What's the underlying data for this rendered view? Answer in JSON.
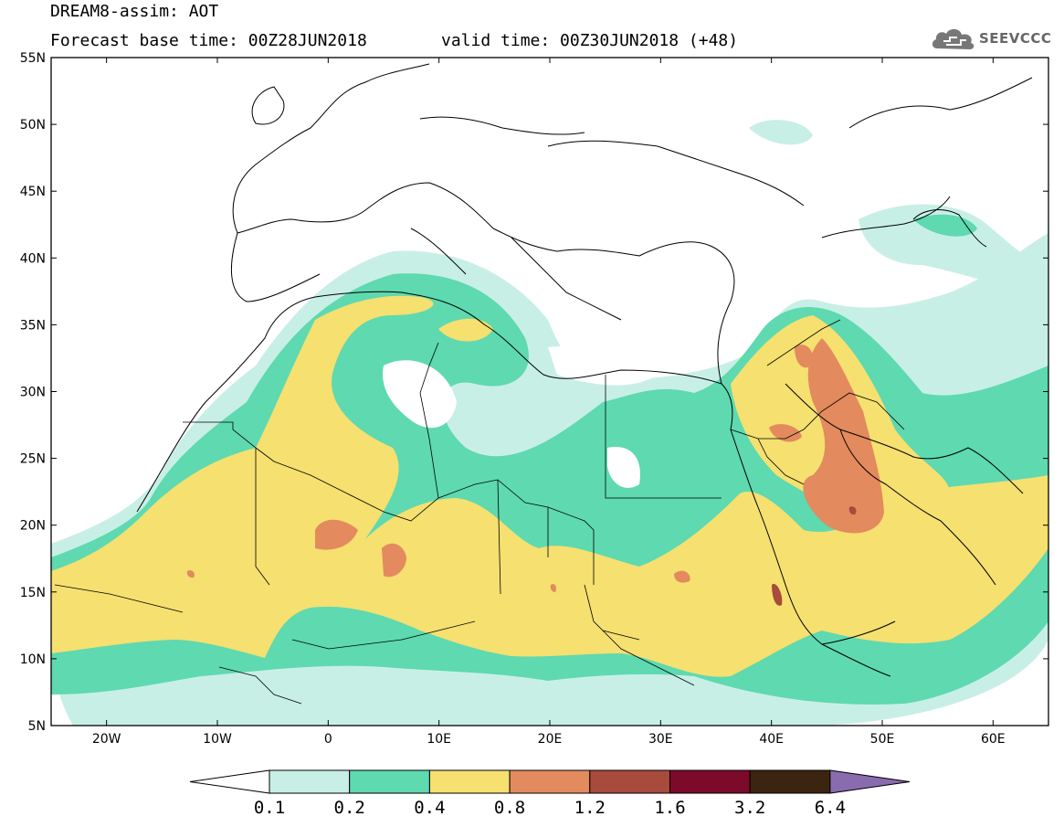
{
  "header": {
    "title": "DREAM8-assim: AOT",
    "base_time": "Forecast base time: 00Z28JUN2018",
    "valid_time": "valid time: 00Z30JUN2018 (+48)"
  },
  "logo": {
    "text": "SEEVCCC",
    "icon": "cloud-icon"
  },
  "map": {
    "lon_range": [
      -25,
      65
    ],
    "lat_range": [
      5,
      55
    ],
    "lon_ticks": [
      {
        "lon": -20,
        "label": "20W"
      },
      {
        "lon": -10,
        "label": "10W"
      },
      {
        "lon": 0,
        "label": "0"
      },
      {
        "lon": 10,
        "label": "10E"
      },
      {
        "lon": 20,
        "label": "20E"
      },
      {
        "lon": 30,
        "label": "30E"
      },
      {
        "lon": 40,
        "label": "40E"
      },
      {
        "lon": 50,
        "label": "50E"
      },
      {
        "lon": 60,
        "label": "60E"
      }
    ],
    "lat_ticks": [
      {
        "lat": 5,
        "label": "5N"
      },
      {
        "lat": 10,
        "label": "10N"
      },
      {
        "lat": 15,
        "label": "15N"
      },
      {
        "lat": 20,
        "label": "20N"
      },
      {
        "lat": 25,
        "label": "25N"
      },
      {
        "lat": 30,
        "label": "30N"
      },
      {
        "lat": 35,
        "label": "35N"
      },
      {
        "lat": 40,
        "label": "40N"
      },
      {
        "lat": 45,
        "label": "45N"
      },
      {
        "lat": 50,
        "label": "50N"
      },
      {
        "lat": 55,
        "label": "55N"
      }
    ]
  },
  "colorbar": {
    "thresholds": [
      "0.1",
      "0.2",
      "0.4",
      "0.8",
      "1.2",
      "1.6",
      "3.2",
      "6.4"
    ],
    "colors": {
      "under": "#ffffff",
      "b1": "#c8efe6",
      "b2": "#5ed9b0",
      "b3": "#f5e070",
      "b4": "#e38a5e",
      "b5": "#a84a3c",
      "b6": "#7c0a2a",
      "b7": "#3b2410",
      "over": "#8a6bb0"
    }
  }
}
